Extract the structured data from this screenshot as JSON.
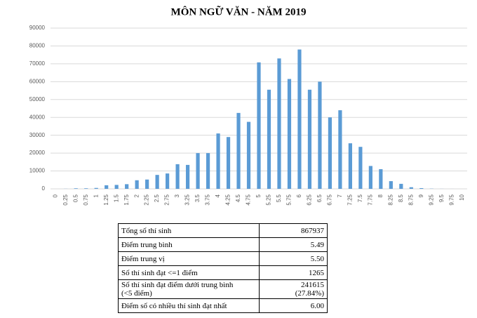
{
  "chart_data": {
    "type": "bar",
    "title": "MÔN NGỮ VĂN - NĂM 2019",
    "categories": [
      "0",
      "0.25",
      "0.5",
      "0.75",
      "1",
      "1.25",
      "1.5",
      "1.75",
      "2",
      "2.25",
      "2.5",
      "2.75",
      "3",
      "3.25",
      "3.5",
      "3.75",
      "4",
      "4.25",
      "4.5",
      "4.75",
      "5",
      "5.25",
      "5.5",
      "5.75",
      "6",
      "6.25",
      "6.5",
      "6.75",
      "7",
      "7.25",
      "7.5",
      "7.75",
      "8",
      "8.25",
      "8.5",
      "8.75",
      "9",
      "9.25",
      "9.5",
      "9.75",
      "10"
    ],
    "values": [
      0,
      50,
      300,
      300,
      500,
      2000,
      2200,
      2600,
      4800,
      5200,
      7800,
      8600,
      13800,
      13400,
      20000,
      20000,
      31000,
      29000,
      42500,
      37500,
      70800,
      55500,
      73000,
      61500,
      78000,
      55500,
      60000,
      40000,
      44000,
      25500,
      23500,
      12800,
      11000,
      4300,
      2800,
      900,
      400,
      100,
      30,
      10,
      0
    ],
    "color": "#5b9bd5",
    "ylim": [
      0,
      90000
    ],
    "yticks": [
      0,
      10000,
      20000,
      30000,
      40000,
      50000,
      60000,
      70000,
      80000,
      90000
    ],
    "grid": true
  },
  "table": {
    "rows": [
      [
        "Tổng số thí sinh",
        "867937"
      ],
      [
        "Điểm trung bình",
        "5.49"
      ],
      [
        "Điểm trung vị",
        "5.50"
      ],
      [
        "Số thí sinh đạt <=1 điểm",
        "1265"
      ],
      [
        "Số thí sinh đạt điểm dưới trung bình\n(<5 điểm)",
        "241615\n(27.84%)"
      ],
      [
        "Điểm số có nhiều thí sinh đạt nhất",
        "6.00"
      ]
    ]
  }
}
